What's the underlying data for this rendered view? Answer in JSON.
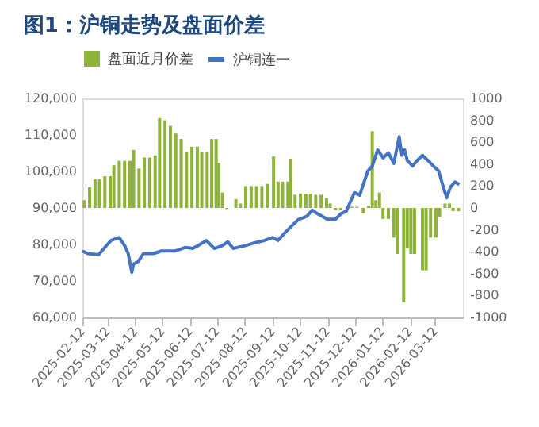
{
  "chart_data": {
    "type": "line",
    "title": "图1：沪铜走势及盘面价差",
    "legend": "top",
    "grid": false,
    "marker": "none",
    "ylim": [
      60000,
      120000
    ],
    "yticks": [
      {
        "value": 60000,
        "label": "60,000"
      },
      {
        "value": 70000,
        "label": "70,000"
      },
      {
        "value": 80000,
        "label": "80,000"
      },
      {
        "value": 90000,
        "label": "90,000"
      },
      {
        "value": 100000,
        "label": "100,000"
      },
      {
        "value": 110000,
        "label": "110,000"
      },
      {
        "value": 120000,
        "label": "120,000"
      }
    ],
    "y2lim": [
      -1000,
      1000
    ],
    "y2ticks": [
      -1000,
      -800,
      -600,
      -400,
      -200,
      0,
      200,
      400,
      600,
      800,
      1000
    ],
    "xlim": [
      "2025-02-12",
      "2026-04-12"
    ],
    "xticks": [
      "2025-02-12",
      "2025-03-12",
      "2025-04-12",
      "2025-05-12",
      "2025-06-12",
      "2025-07-12",
      "2025-08-12",
      "2025-09-12",
      "2025-10-12",
      "2025-11-12",
      "2025-12-12",
      "2026-01-12",
      "2026-02-12",
      "2026-03-12"
    ],
    "series": [
      {
        "name": "盘面近月价差",
        "type": "bar",
        "axis": "y2",
        "color": "#8db33a",
        "x": [
          "2025-02-14",
          "2025-02-20",
          "2025-02-26",
          "2025-03-03",
          "2025-03-09",
          "2025-03-15",
          "2025-03-19",
          "2025-03-25",
          "2025-03-31",
          "2025-04-06",
          "2025-04-10",
          "2025-04-16",
          "2025-04-22",
          "2025-04-28",
          "2025-05-04",
          "2025-05-09",
          "2025-05-15",
          "2025-05-21",
          "2025-05-27",
          "2025-06-02",
          "2025-06-08",
          "2025-06-14",
          "2025-06-20",
          "2025-06-25",
          "2025-07-01",
          "2025-07-06",
          "2025-07-11",
          "2025-07-14",
          "2025-07-18",
          "2025-07-23",
          "2025-08-02",
          "2025-08-07",
          "2025-08-13",
          "2025-08-19",
          "2025-08-25",
          "2025-08-31",
          "2025-09-06",
          "2025-09-13",
          "2025-09-18",
          "2025-09-23",
          "2025-09-29",
          "2025-10-02",
          "2025-10-07",
          "2025-10-13",
          "2025-10-19",
          "2025-10-24",
          "2025-10-30",
          "2025-11-05",
          "2025-11-11",
          "2025-11-15",
          "2025-11-21",
          "2025-11-27",
          "2025-12-03",
          "2025-12-09",
          "2025-12-15",
          "2025-12-22",
          "2025-12-28",
          "2026-01-01",
          "2026-01-05",
          "2026-01-09",
          "2026-01-13",
          "2026-01-19",
          "2026-01-25",
          "2026-01-29",
          "2026-02-05",
          "2026-02-09",
          "2026-02-13",
          "2026-02-17",
          "2026-02-26",
          "2026-03-02",
          "2026-03-07",
          "2026-03-13",
          "2026-03-17",
          "2026-03-23",
          "2026-03-28",
          "2026-04-01",
          "2026-04-07"
        ],
        "values": [
          70,
          190,
          260,
          260,
          290,
          290,
          390,
          430,
          430,
          430,
          530,
          360,
          460,
          460,
          480,
          820,
          800,
          750,
          680,
          630,
          510,
          560,
          560,
          510,
          510,
          630,
          630,
          410,
          140,
          -10,
          80,
          40,
          200,
          200,
          200,
          200,
          220,
          470,
          240,
          240,
          240,
          450,
          120,
          130,
          130,
          130,
          120,
          120,
          90,
          40,
          -20,
          -20,
          null,
          10,
          10,
          -50,
          20,
          700,
          70,
          140,
          -100,
          -100,
          -270,
          -420,
          -860,
          -370,
          -420,
          -420,
          -570,
          -570,
          -270,
          -270,
          -80,
          40,
          40,
          -30,
          -30
        ]
      },
      {
        "name": "沪铜连一",
        "color": "#4472c4",
        "x": [
          "2025-02-12",
          "2025-02-18",
          "2025-03-02",
          "2025-03-08",
          "2025-03-16",
          "2025-03-25",
          "2025-03-31",
          "2025-04-04",
          "2025-04-08",
          "2025-04-10",
          "2025-04-15",
          "2025-04-21",
          "2025-05-02",
          "2025-05-11",
          "2025-05-26",
          "2025-06-07",
          "2025-06-15",
          "2025-06-21",
          "2025-06-30",
          "2025-07-09",
          "2025-07-18",
          "2025-07-24",
          "2025-07-30",
          "2025-08-13",
          "2025-08-22",
          "2025-09-03",
          "2025-09-12",
          "2025-09-18",
          "2025-09-26",
          "2025-10-05",
          "2025-10-11",
          "2025-10-20",
          "2025-10-26",
          "2025-11-01",
          "2025-11-12",
          "2025-11-21",
          "2025-11-27",
          "2025-12-03",
          "2025-12-12",
          "2025-12-18",
          "2025-12-27",
          "2026-01-01",
          "2026-01-07",
          "2026-01-13",
          "2026-01-19",
          "2026-01-25",
          "2026-01-31",
          "2026-02-03",
          "2026-02-06",
          "2026-02-09",
          "2026-02-15",
          "2026-02-20",
          "2026-02-26",
          "2026-03-04",
          "2026-03-10",
          "2026-03-16",
          "2026-03-22",
          "2026-03-25",
          "2026-03-29",
          "2026-04-03",
          "2026-04-08"
        ],
        "values": [
          78200,
          77500,
          77200,
          78900,
          81100,
          81900,
          79700,
          77500,
          72400,
          74600,
          75300,
          77500,
          77500,
          78200,
          78200,
          79200,
          78900,
          79700,
          81100,
          78900,
          79700,
          80700,
          78900,
          79700,
          80400,
          81100,
          81900,
          81100,
          83300,
          85500,
          86900,
          87700,
          89400,
          88400,
          86900,
          86900,
          88400,
          89100,
          94200,
          93500,
          100100,
          101500,
          105900,
          103700,
          105100,
          102200,
          109500,
          104400,
          105900,
          103000,
          101500,
          103000,
          104400,
          103000,
          101500,
          100100,
          95000,
          92800,
          95700,
          97100,
          96400
        ]
      }
    ]
  }
}
